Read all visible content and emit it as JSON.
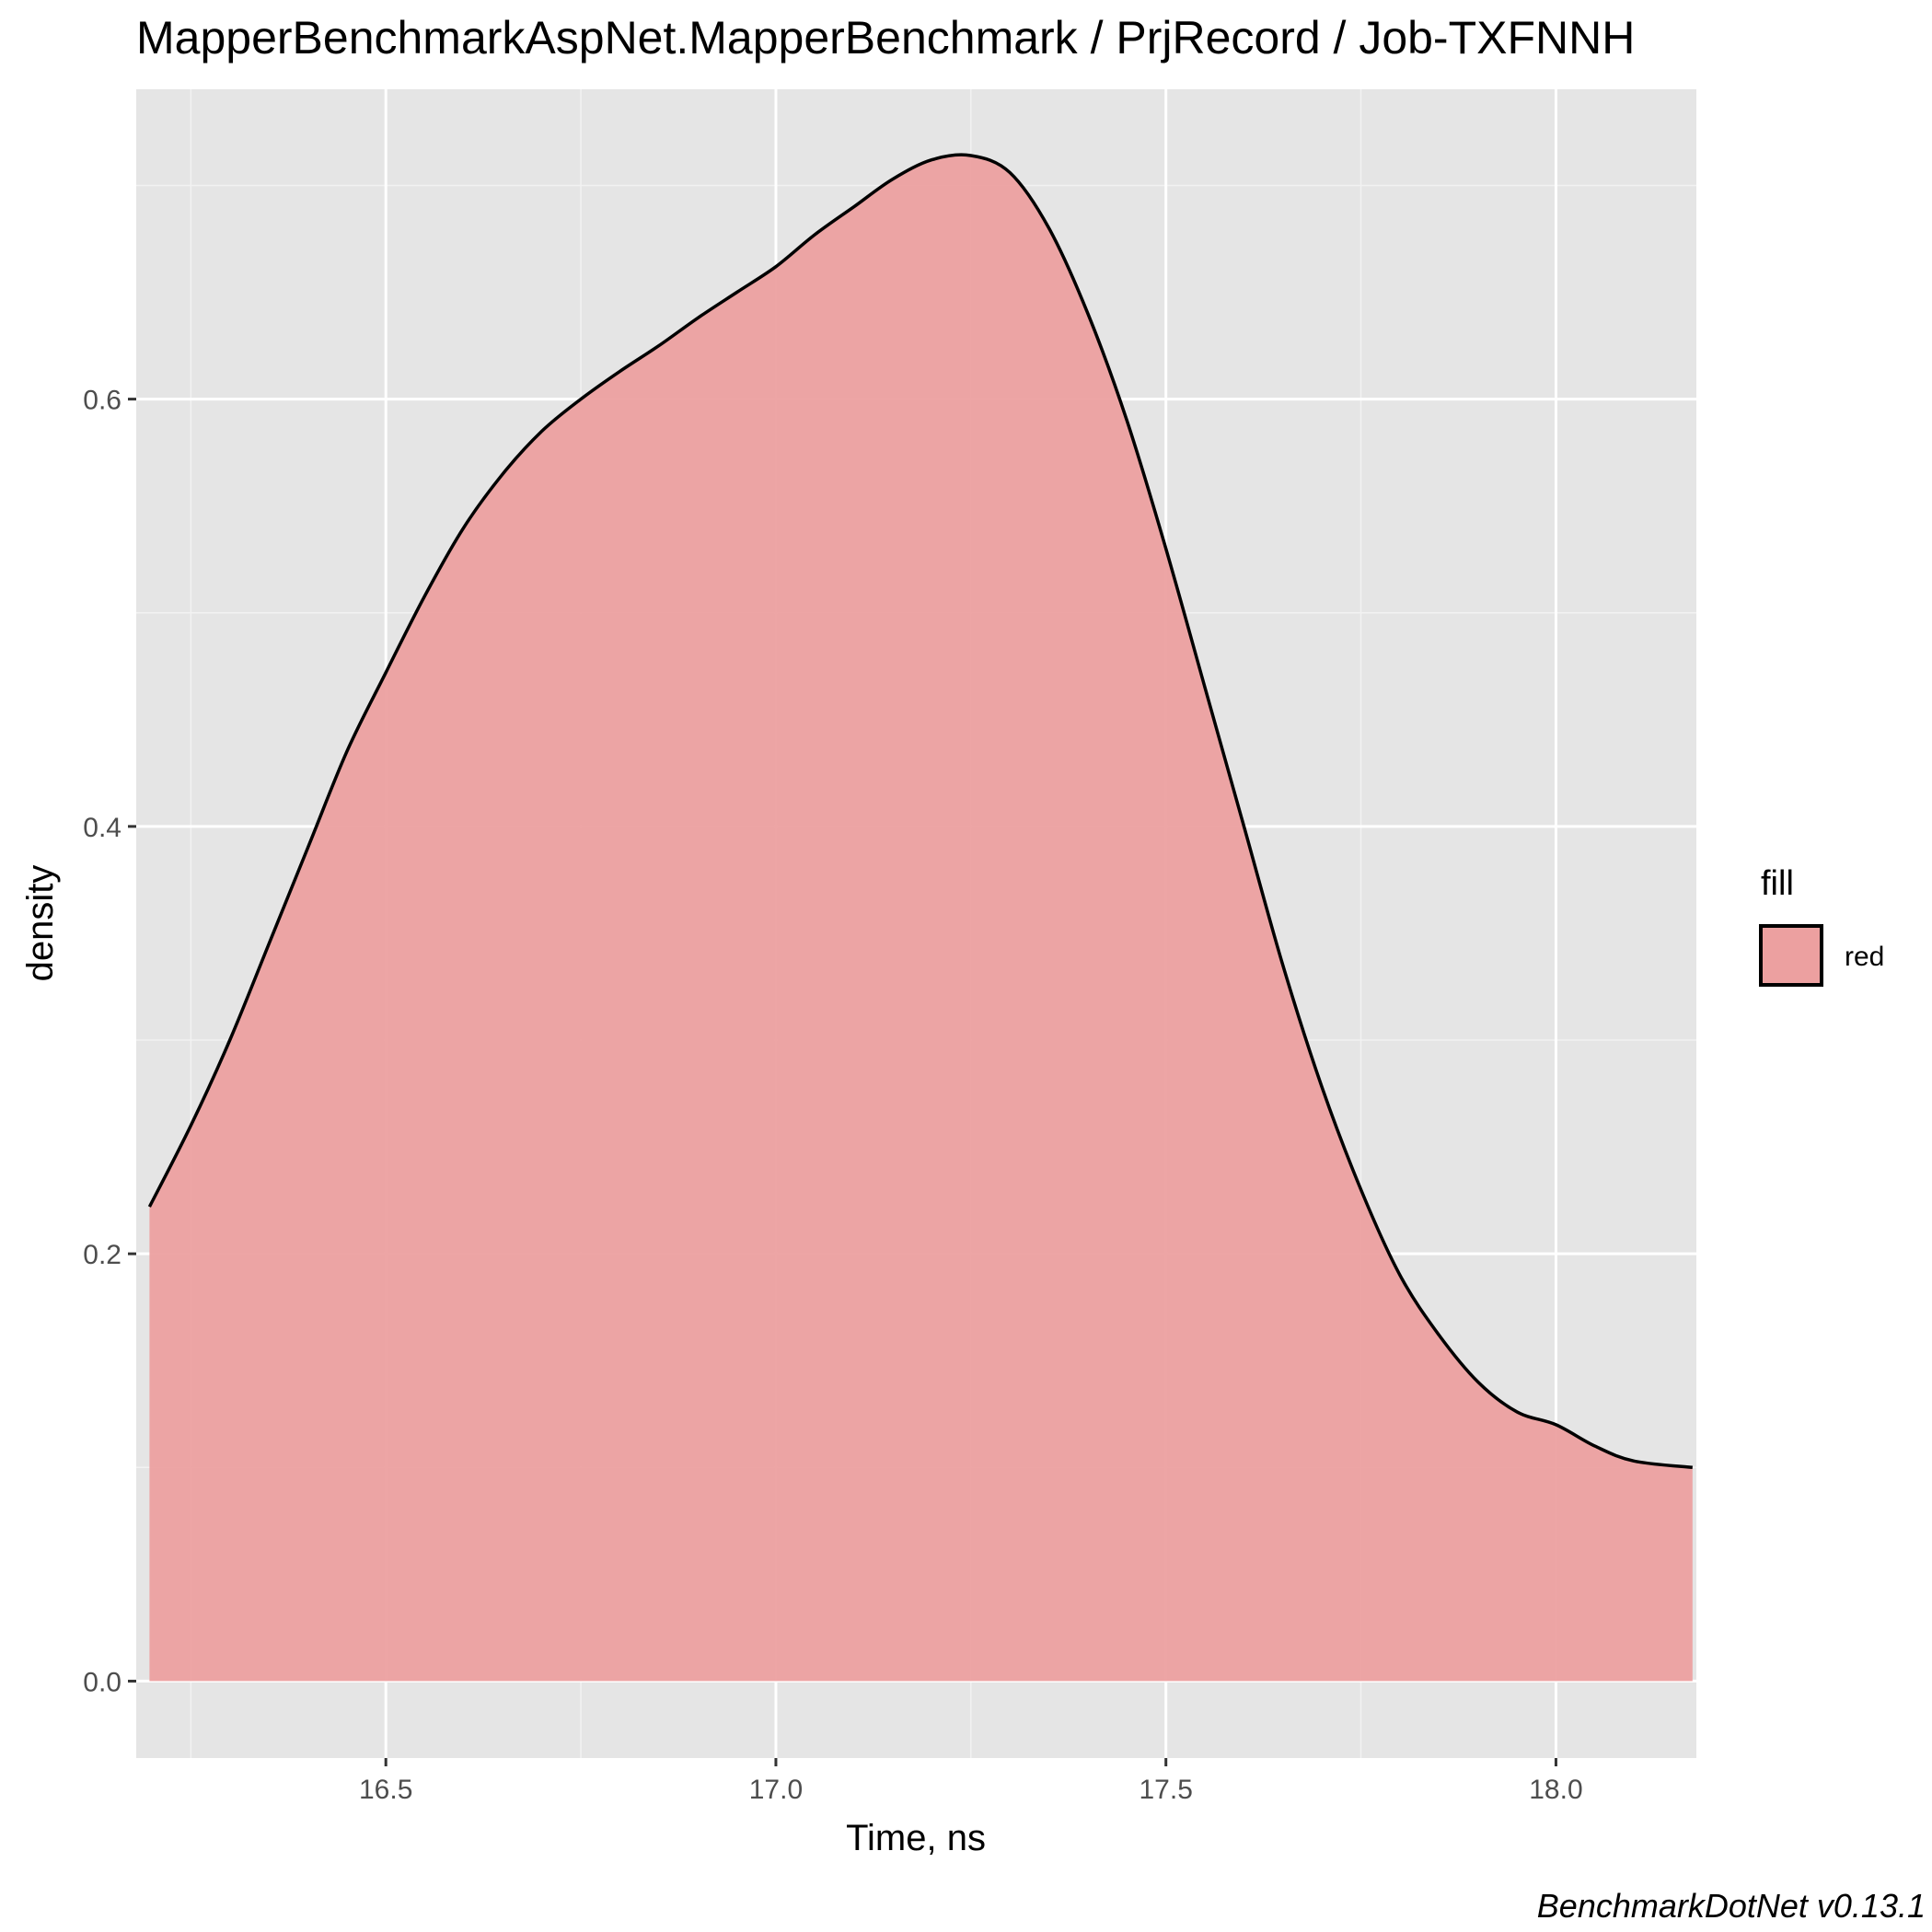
{
  "chart_data": {
    "type": "area",
    "title": "MapperBenchmarkAspNet.MapperBenchmark / PrjRecord / Job-TXFNNH",
    "xlabel": "Time, ns",
    "ylabel": "density",
    "xlim": [
      16.18,
      18.18
    ],
    "ylim": [
      -0.036,
      0.745
    ],
    "x_ticks": [
      16.5,
      17.0,
      17.5,
      18.0
    ],
    "x_tick_labels": [
      "16.5",
      "17.0",
      "17.5",
      "18.0"
    ],
    "y_ticks": [
      0.0,
      0.2,
      0.4,
      0.6
    ],
    "y_tick_labels": [
      "0.0",
      "0.2",
      "0.4",
      "0.6"
    ],
    "grid": true,
    "legend": {
      "title": "fill",
      "position": "right",
      "entries": [
        "red"
      ]
    },
    "caption": "BenchmarkDotNet v0.13.1",
    "series": [
      {
        "fill": "red",
        "x": [
          16.197,
          16.25,
          16.3,
          16.35,
          16.4,
          16.45,
          16.5,
          16.55,
          16.6,
          16.65,
          16.7,
          16.75,
          16.8,
          16.85,
          16.9,
          16.95,
          17.0,
          17.05,
          17.1,
          17.15,
          17.2,
          17.25,
          17.3,
          17.35,
          17.4,
          17.45,
          17.5,
          17.55,
          17.6,
          17.65,
          17.7,
          17.75,
          17.8,
          17.85,
          17.9,
          17.95,
          18.0,
          18.05,
          18.1,
          18.175
        ],
        "y": [
          0.222,
          0.26,
          0.3,
          0.345,
          0.39,
          0.435,
          0.472,
          0.508,
          0.54,
          0.565,
          0.585,
          0.6,
          0.613,
          0.625,
          0.638,
          0.65,
          0.662,
          0.677,
          0.69,
          0.703,
          0.712,
          0.714,
          0.706,
          0.68,
          0.64,
          0.59,
          0.53,
          0.465,
          0.4,
          0.335,
          0.278,
          0.23,
          0.19,
          0.162,
          0.14,
          0.126,
          0.12,
          0.11,
          0.103,
          0.1
        ]
      }
    ]
  },
  "colors": {
    "panel_background": "#e5e5e5",
    "grid_major": "#ffffff",
    "grid_minor": "#f2f2f2",
    "area_fill": "#eca0a0",
    "outline": "#000000"
  }
}
